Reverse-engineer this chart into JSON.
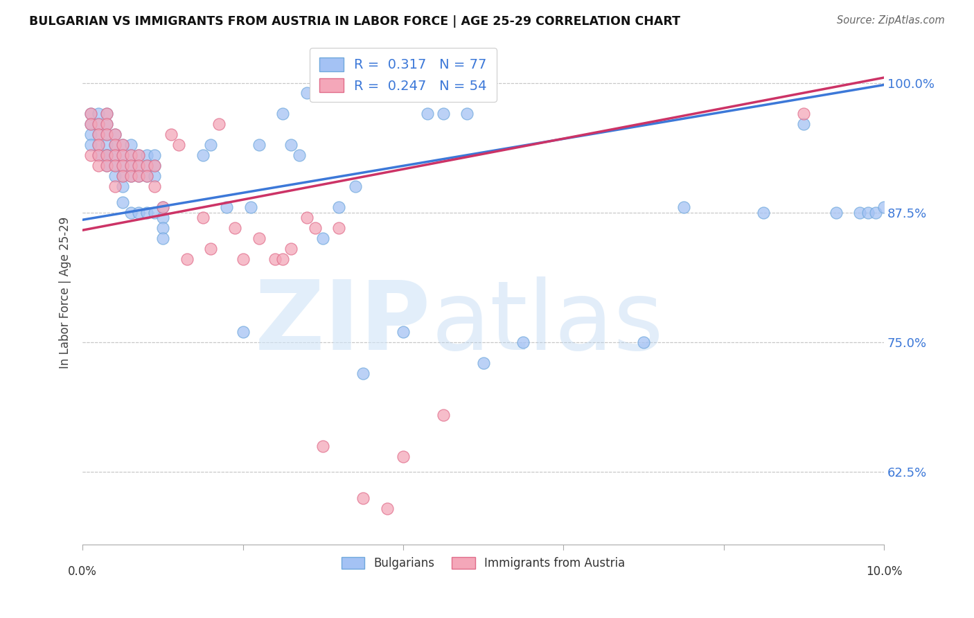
{
  "title": "BULGARIAN VS IMMIGRANTS FROM AUSTRIA IN LABOR FORCE | AGE 25-29 CORRELATION CHART",
  "source": "Source: ZipAtlas.com",
  "ylabel": "In Labor Force | Age 25-29",
  "xmin": 0.0,
  "xmax": 0.1,
  "ymin": 0.555,
  "ymax": 1.04,
  "blue_color": "#a4c2f4",
  "blue_edge_color": "#6fa8dc",
  "pink_color": "#f4a7b9",
  "pink_edge_color": "#e06c8a",
  "blue_line_color": "#3c78d8",
  "pink_line_color": "#cc3366",
  "blue_R": 0.317,
  "blue_N": 77,
  "pink_R": 0.247,
  "pink_N": 54,
  "ytick_vals": [
    0.625,
    0.75,
    0.875,
    1.0
  ],
  "ytick_labels": [
    "62.5%",
    "75.0%",
    "87.5%",
    "100.0%"
  ],
  "xtick_vals": [
    0.0,
    0.02,
    0.04,
    0.06,
    0.08,
    0.1
  ],
  "blue_line_x0": 0.0,
  "blue_line_y0": 0.868,
  "blue_line_x1": 0.1,
  "blue_line_y1": 0.998,
  "pink_line_x0": 0.0,
  "pink_line_y0": 0.858,
  "pink_line_x1": 0.1,
  "pink_line_y1": 1.005,
  "blue_x": [
    0.001,
    0.001,
    0.001,
    0.001,
    0.002,
    0.002,
    0.002,
    0.002,
    0.002,
    0.003,
    0.003,
    0.003,
    0.003,
    0.003,
    0.003,
    0.003,
    0.004,
    0.004,
    0.004,
    0.004,
    0.004,
    0.005,
    0.005,
    0.005,
    0.005,
    0.005,
    0.005,
    0.006,
    0.006,
    0.006,
    0.006,
    0.006,
    0.007,
    0.007,
    0.007,
    0.007,
    0.008,
    0.008,
    0.008,
    0.008,
    0.009,
    0.009,
    0.009,
    0.009,
    0.01,
    0.01,
    0.01,
    0.01,
    0.015,
    0.016,
    0.018,
    0.02,
    0.021,
    0.022,
    0.025,
    0.026,
    0.027,
    0.028,
    0.03,
    0.032,
    0.034,
    0.035,
    0.04,
    0.043,
    0.045,
    0.048,
    0.05,
    0.055,
    0.07,
    0.075,
    0.085,
    0.09,
    0.094,
    0.097,
    0.098,
    0.099,
    0.1
  ],
  "blue_y": [
    0.97,
    0.96,
    0.95,
    0.94,
    0.97,
    0.96,
    0.95,
    0.94,
    0.93,
    0.97,
    0.96,
    0.95,
    0.94,
    0.93,
    0.93,
    0.92,
    0.95,
    0.94,
    0.93,
    0.92,
    0.91,
    0.94,
    0.93,
    0.92,
    0.91,
    0.9,
    0.885,
    0.94,
    0.93,
    0.92,
    0.91,
    0.875,
    0.93,
    0.92,
    0.91,
    0.875,
    0.93,
    0.92,
    0.91,
    0.875,
    0.93,
    0.92,
    0.91,
    0.875,
    0.88,
    0.87,
    0.86,
    0.85,
    0.93,
    0.94,
    0.88,
    0.76,
    0.88,
    0.94,
    0.97,
    0.94,
    0.93,
    0.99,
    0.85,
    0.88,
    0.9,
    0.72,
    0.76,
    0.97,
    0.97,
    0.97,
    0.73,
    0.75,
    0.75,
    0.88,
    0.875,
    0.96,
    0.875,
    0.875,
    0.875,
    0.875,
    0.88
  ],
  "pink_x": [
    0.001,
    0.001,
    0.001,
    0.002,
    0.002,
    0.002,
    0.002,
    0.002,
    0.003,
    0.003,
    0.003,
    0.003,
    0.003,
    0.004,
    0.004,
    0.004,
    0.004,
    0.004,
    0.005,
    0.005,
    0.005,
    0.005,
    0.006,
    0.006,
    0.006,
    0.007,
    0.007,
    0.007,
    0.008,
    0.008,
    0.009,
    0.009,
    0.01,
    0.011,
    0.012,
    0.013,
    0.015,
    0.016,
    0.017,
    0.019,
    0.02,
    0.022,
    0.024,
    0.025,
    0.026,
    0.028,
    0.029,
    0.03,
    0.032,
    0.035,
    0.038,
    0.04,
    0.045,
    0.09
  ],
  "pink_y": [
    0.97,
    0.96,
    0.93,
    0.96,
    0.95,
    0.94,
    0.93,
    0.92,
    0.97,
    0.96,
    0.95,
    0.93,
    0.92,
    0.95,
    0.94,
    0.93,
    0.92,
    0.9,
    0.94,
    0.93,
    0.92,
    0.91,
    0.93,
    0.92,
    0.91,
    0.93,
    0.92,
    0.91,
    0.92,
    0.91,
    0.92,
    0.9,
    0.88,
    0.95,
    0.94,
    0.83,
    0.87,
    0.84,
    0.96,
    0.86,
    0.83,
    0.85,
    0.83,
    0.83,
    0.84,
    0.87,
    0.86,
    0.65,
    0.86,
    0.6,
    0.59,
    0.64,
    0.68,
    0.97
  ]
}
